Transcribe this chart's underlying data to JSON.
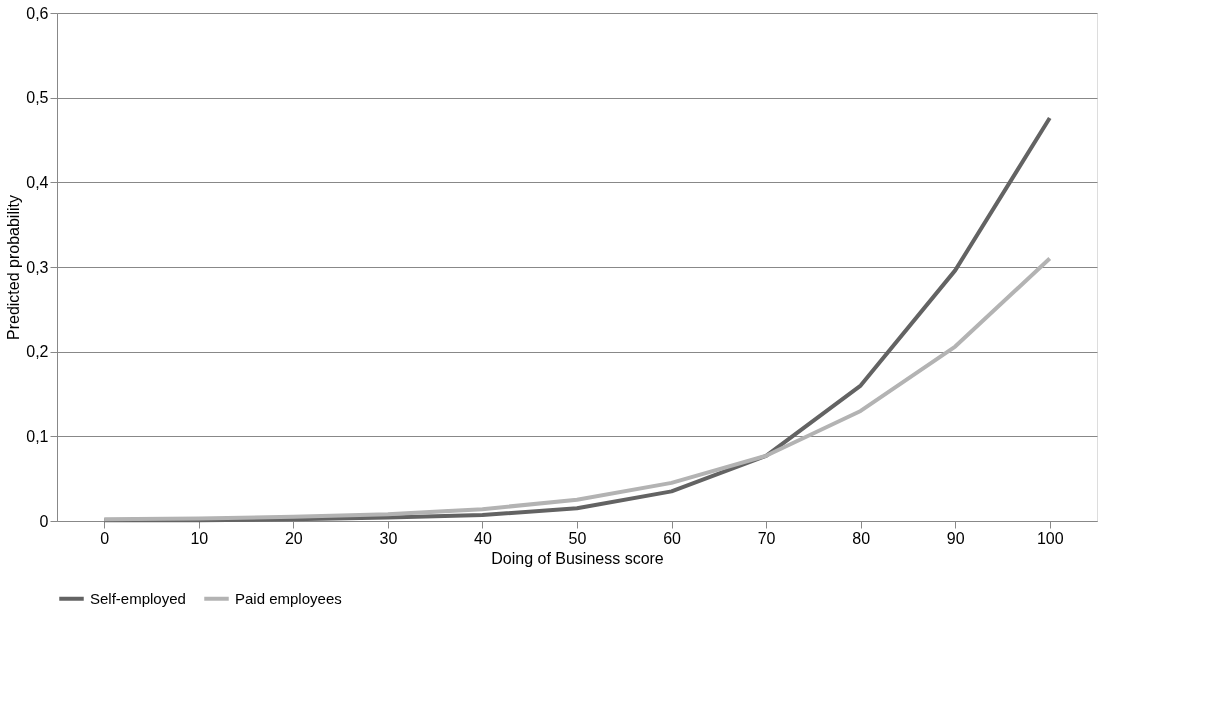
{
  "chart_data": {
    "type": "line",
    "xlabel": "Doing of Business score",
    "ylabel": "Predicted probability",
    "categories": [
      "0",
      "10",
      "20",
      "30",
      "40",
      "50",
      "60",
      "70",
      "80",
      "90",
      "100"
    ],
    "series": [
      {
        "name": "Self-employed",
        "color": "#636363",
        "values": [
          0.001,
          0.001,
          0.002,
          0.004,
          0.007,
          0.015,
          0.035,
          0.077,
          0.16,
          0.296,
          0.476
        ]
      },
      {
        "name": "Paid employees",
        "color": "#b3b3b3",
        "values": [
          0.002,
          0.003,
          0.005,
          0.008,
          0.014,
          0.025,
          0.045,
          0.077,
          0.13,
          0.206,
          0.31
        ]
      }
    ],
    "ylim": [
      0,
      0.6
    ],
    "yticks": [
      {
        "value": 0,
        "label": "0"
      },
      {
        "value": 0.1,
        "label": "0,1"
      },
      {
        "value": 0.2,
        "label": "0,2"
      },
      {
        "value": 0.3,
        "label": "0,3"
      },
      {
        "value": 0.4,
        "label": "0,4"
      },
      {
        "value": 0.5,
        "label": "0,5"
      },
      {
        "value": 0.6,
        "label": "0,6"
      }
    ],
    "grid": "y",
    "legend": "bottom",
    "marker": "none",
    "line_style": "solid"
  }
}
